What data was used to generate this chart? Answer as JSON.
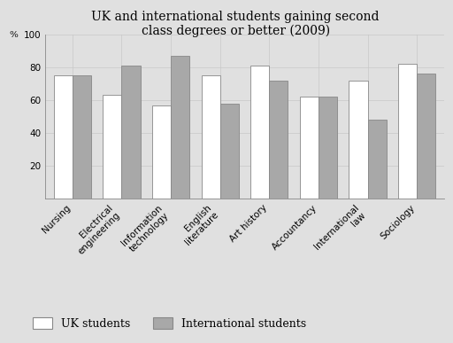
{
  "title": "UK and international students gaining second\nclass degrees or better (2009)",
  "pct_label": "%",
  "categories": [
    "Nursing",
    "Electrical\nengineering",
    "Information\ntechnology",
    "English\nliterature",
    "Art history",
    "Accountancy",
    "International\nlaw",
    "Sociology"
  ],
  "uk_values": [
    75,
    63,
    57,
    75,
    81,
    62,
    72,
    82
  ],
  "intl_values": [
    75,
    81,
    87,
    58,
    72,
    62,
    48,
    76
  ],
  "uk_color": "#ffffff",
  "intl_color": "#a8a8a8",
  "bar_edge_color": "#888888",
  "ylim": [
    0,
    100
  ],
  "yticks": [
    20,
    40,
    60,
    80,
    100
  ],
  "grid_color": "#c8c8c8",
  "background_color": "#e0e0e0",
  "plot_bg_color": "#e0e0e0",
  "legend_uk": "UK students",
  "legend_intl": "International students",
  "bar_width": 0.38,
  "title_fontsize": 10,
  "tick_fontsize": 7.5,
  "legend_fontsize": 9
}
